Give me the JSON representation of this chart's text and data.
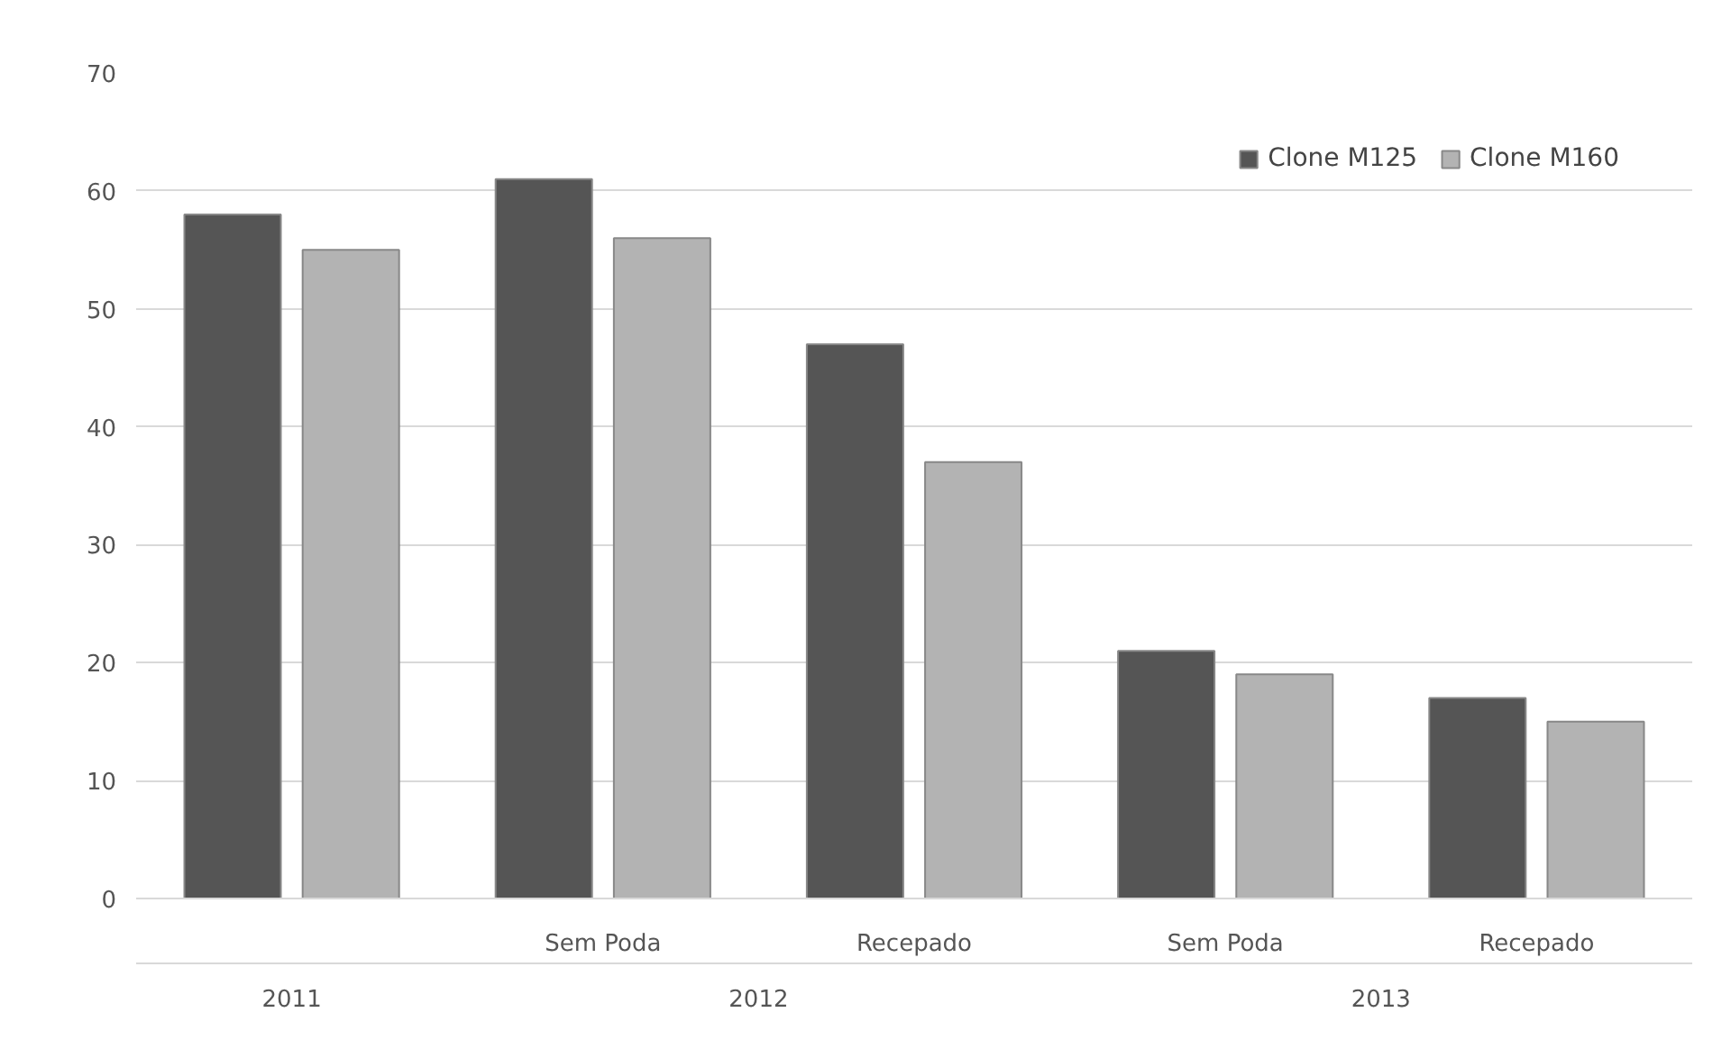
{
  "chart_data": {
    "type": "bar",
    "categories": [
      null,
      "Sem Poda",
      "Recepado",
      "Sem Poda",
      "Recepado"
    ],
    "annotations": [
      "2011",
      "2012",
      "2013"
    ],
    "series": [
      {
        "name": "Clone M125",
        "color": "#555555",
        "values": [
          58,
          61,
          47,
          21,
          17
        ]
      },
      {
        "name": "Clone M160",
        "color": "#b3b3b3",
        "values": [
          55,
          56,
          37,
          19,
          15
        ]
      }
    ],
    "ylim": [
      0,
      70
    ],
    "yticks": [
      0,
      10,
      20,
      30,
      40,
      50,
      60,
      70
    ],
    "grid": "y",
    "legend": "top right"
  }
}
